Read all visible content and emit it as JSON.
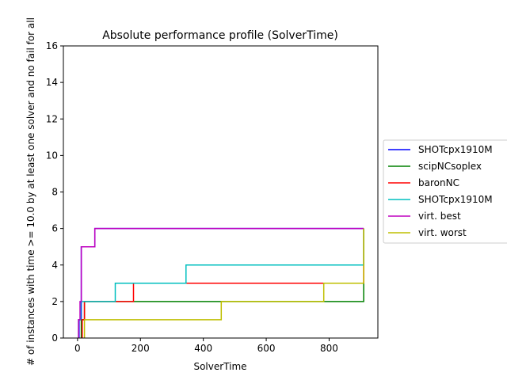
{
  "chart_data": {
    "type": "line",
    "title": "Absolute performance profile (SolverTime)",
    "xlabel": "SolverTime",
    "ylabel": "# of instances with time >= 10.0 by at least one solver and no fail for all",
    "xlim": [
      -45,
      955
    ],
    "ylim": [
      0,
      16
    ],
    "xticks": [
      0,
      200,
      400,
      600,
      800
    ],
    "yticks": [
      0,
      2,
      4,
      6,
      8,
      10,
      12,
      14,
      16
    ],
    "grid": false,
    "legend_position": "outside right",
    "series": [
      {
        "name": "SHOTcpx1910M",
        "color": "#0000ff",
        "x": [
          5,
          5,
          12,
          12,
          55,
          55,
          910
        ],
        "y": [
          0,
          1,
          1,
          5,
          5,
          6,
          6
        ]
      },
      {
        "name": "scipNCsoplex",
        "color": "#008000",
        "x": [
          12,
          12,
          22,
          22,
          910,
          910
        ],
        "y": [
          0,
          1,
          1,
          2,
          2,
          3
        ]
      },
      {
        "name": "baronNC",
        "color": "#ff0000",
        "x": [
          15,
          15,
          22,
          22,
          120,
          120,
          178,
          178,
          910,
          910
        ],
        "y": [
          0,
          1,
          1,
          2,
          2,
          2,
          2,
          3,
          3,
          6
        ]
      },
      {
        "name": "SHOTcpx1910M",
        "color": "#00bfbf",
        "x": [
          3,
          3,
          10,
          10,
          120,
          120,
          345,
          345,
          910,
          910
        ],
        "y": [
          0,
          1,
          1,
          2,
          2,
          3,
          3,
          4,
          4,
          6
        ]
      },
      {
        "name": "virt. best",
        "color": "#bf00bf",
        "x": [
          3,
          3,
          8,
          8,
          12,
          12,
          55,
          55,
          910
        ],
        "y": [
          0,
          1,
          1,
          2,
          2,
          5,
          5,
          6,
          6
        ]
      },
      {
        "name": "virt. worst",
        "color": "#bfbf00",
        "x": [
          22,
          22,
          457,
          457,
          783,
          783,
          910,
          910
        ],
        "y": [
          0,
          1,
          1,
          2,
          2,
          3,
          3,
          6
        ]
      }
    ]
  }
}
